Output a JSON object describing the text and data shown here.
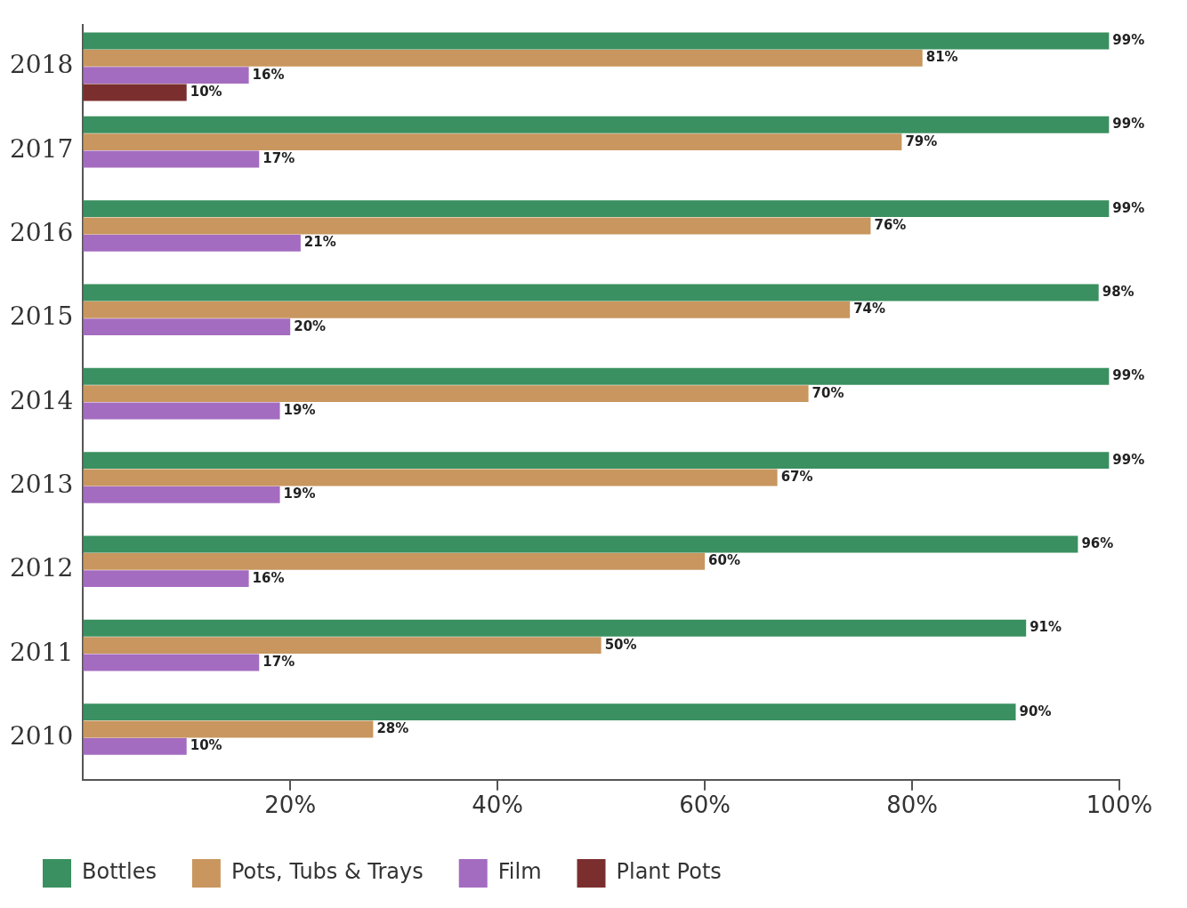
{
  "chart_data": {
    "type": "bar",
    "orientation": "horizontal",
    "categories": [
      "2018",
      "2017",
      "2016",
      "2015",
      "2014",
      "2013",
      "2012",
      "2011",
      "2010"
    ],
    "series": [
      {
        "name": "Bottles",
        "color": "#3a9060",
        "values": [
          99,
          99,
          99,
          98,
          99,
          99,
          96,
          91,
          90
        ],
        "value_labels": [
          "99%",
          "99%",
          "99%",
          "98%",
          "99%",
          "99%",
          "96%",
          "91%",
          "90%"
        ]
      },
      {
        "name": "Pots, Tubs & Trays",
        "color": "#c8965e",
        "values": [
          81,
          79,
          76,
          74,
          70,
          67,
          60,
          50,
          28
        ],
        "value_labels": [
          "81%",
          "79%",
          "76%",
          "74%",
          "70%",
          "67%",
          "60%",
          "50%",
          "28%"
        ]
      },
      {
        "name": "Film",
        "color": "#a46cc0",
        "values": [
          16,
          17,
          21,
          20,
          19,
          19,
          16,
          17,
          10
        ],
        "value_labels": [
          "16%",
          "17%",
          "21%",
          "20%",
          "19%",
          "19%",
          "16%",
          "17%",
          "10%"
        ]
      },
      {
        "name": "Plant Pots",
        "color": "#7b2e2e",
        "values": [
          10,
          null,
          null,
          null,
          null,
          null,
          null,
          null,
          null
        ],
        "value_labels": [
          "10%",
          null,
          null,
          null,
          null,
          null,
          null,
          null,
          null
        ]
      }
    ],
    "xlim": [
      0,
      100
    ],
    "xticks": [
      {
        "value": 20,
        "label": "20%"
      },
      {
        "value": 40,
        "label": "40%"
      },
      {
        "value": 60,
        "label": "60%"
      },
      {
        "value": 80,
        "label": "80%"
      },
      {
        "value": 100,
        "label": "100%"
      }
    ],
    "grid": false,
    "legend": "bottom"
  }
}
